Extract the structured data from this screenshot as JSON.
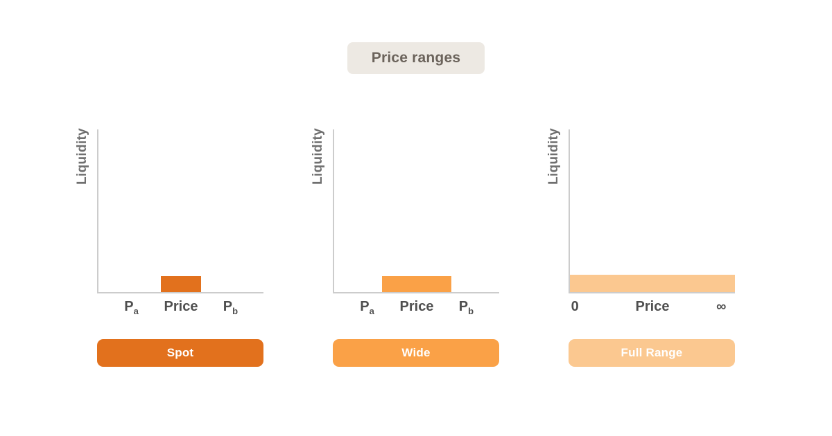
{
  "title_badge": {
    "label": "Price ranges",
    "bg": "#EDE9E3",
    "text_color": "#6B635B"
  },
  "colors": {
    "background": "#FFFFFF",
    "axis": "#CCCCCC",
    "tick_label": "#4F4F4F",
    "ylabel": "#6F6F6F",
    "spot_orange": "#E2711D",
    "wide_orange": "#FAA147",
    "full_range_orange": "#FBC890"
  },
  "chart_data": [
    {
      "type": "bar",
      "name": "Spot",
      "ylabel": "Liquidity",
      "xlabel_concept": "Price",
      "x_ticks": [
        {
          "base": "P",
          "sub": "a",
          "pos_frac": 0.2
        },
        {
          "base": "Price",
          "pos_frac": 0.5
        },
        {
          "base": "P",
          "sub": "b",
          "pos_frac": 0.8
        }
      ],
      "bar": {
        "start_frac": 0.38,
        "end_frac": 0.62,
        "height_frac": 0.1,
        "color": "#E2711D"
      },
      "button": {
        "label": "Spot",
        "color": "#E2711D",
        "text_color": "#FFFFFF"
      }
    },
    {
      "type": "bar",
      "name": "Wide",
      "ylabel": "Liquidity",
      "xlabel_concept": "Price",
      "x_ticks": [
        {
          "base": "P",
          "sub": "a",
          "pos_frac": 0.2
        },
        {
          "base": "Price",
          "pos_frac": 0.5
        },
        {
          "base": "P",
          "sub": "b",
          "pos_frac": 0.8
        }
      ],
      "bar": {
        "start_frac": 0.29,
        "end_frac": 0.71,
        "height_frac": 0.1,
        "color": "#FAA147"
      },
      "button": {
        "label": "Wide",
        "color": "#FAA147",
        "text_color": "#FFFFFF"
      }
    },
    {
      "type": "bar",
      "name": "Full Range",
      "ylabel": "Liquidity",
      "xlabel_concept": "Price",
      "x_ticks": [
        {
          "base": "0",
          "pos_frac": 0.03
        },
        {
          "base": "Price",
          "pos_frac": 0.5
        },
        {
          "base": "∞",
          "pos_frac": 0.917
        }
      ],
      "bar": {
        "start_frac": 0.0,
        "end_frac": 1.0,
        "height_frac": 0.105,
        "color": "#FBC890"
      },
      "button": {
        "label": "Full Range",
        "color": "#FBC890",
        "text_color": "#FFFFFF"
      }
    }
  ]
}
